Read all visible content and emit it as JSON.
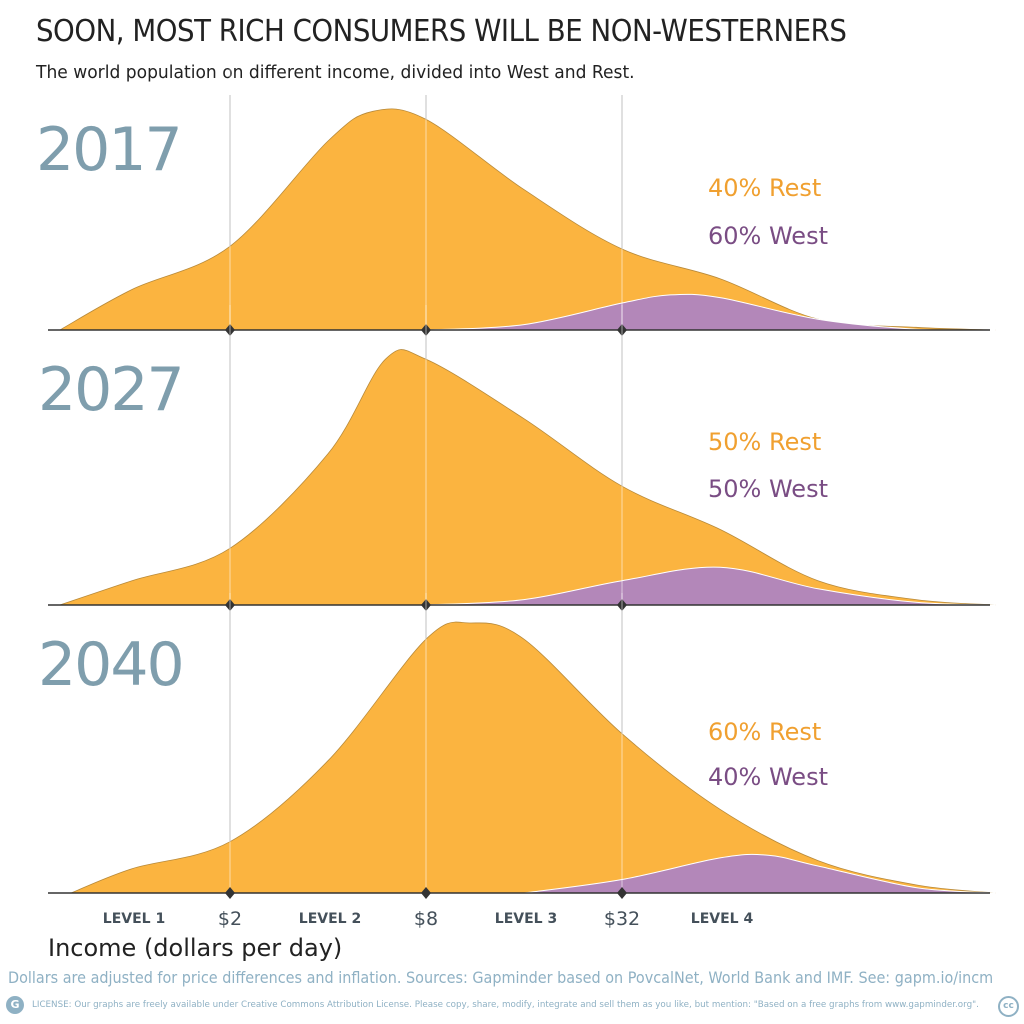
{
  "title": "SOON, MOST RICH CONSUMERS WILL BE NON-WESTERNERS",
  "subtitle": "The world population on different income, divided into West and Rest.",
  "footer": {
    "sources": "Dollars are adjusted for price differences and inflation. Sources: Gapminder based on PovcalNet, World Bank and IMF. See: gapm.io/incm",
    "license": "LICENSE: Our graphs are freely available under Creative Commons Attribution License. Please copy, share, modify, integrate and sell them as you like, but mention: \"Based on a free graphs from www.gapminder.org\".",
    "gapminder_logo": "G",
    "cc_logo": "cc"
  },
  "colors": {
    "rest": "#fbb440",
    "rest_label": "#f0a030",
    "west": "#b387b9",
    "west_label": "#7a4d84",
    "year": "#7f9ead"
  },
  "chart_data": {
    "type": "area",
    "xscale": "log",
    "xlabel": "Income (dollars per day)",
    "xlim": [
      0.6,
      450
    ],
    "x_ticks": [
      {
        "value": 2,
        "label": "$2"
      },
      {
        "value": 8,
        "label": "$8"
      },
      {
        "value": 32,
        "label": "$32"
      }
    ],
    "level_labels": [
      {
        "label": "LEVEL 1",
        "center": 1
      },
      {
        "label": "LEVEL 2",
        "center": 4
      },
      {
        "label": "LEVEL 3",
        "center": 16
      },
      {
        "label": "LEVEL 4",
        "center": 64
      }
    ],
    "y_units": "relative population (no axis shown)",
    "panels": [
      {
        "year": "2017",
        "rest_label": "40% Rest",
        "west_label": "60% West",
        "total": {
          "x": [
            0.6,
            1,
            2,
            4,
            5.5,
            8,
            16,
            32,
            64,
            128,
            256,
            450
          ],
          "y": [
            0,
            15,
            31,
            70,
            81,
            78,
            52,
            30,
            19,
            4,
            1,
            0
          ]
        },
        "west": {
          "x": [
            8,
            16,
            32,
            45,
            64,
            128,
            256,
            450
          ],
          "y": [
            0,
            2,
            10,
            13,
            12,
            4,
            0.3,
            0
          ]
        }
      },
      {
        "year": "2027",
        "rest_label": "50% Rest",
        "west_label": "50% West",
        "total": {
          "x": [
            0.6,
            1,
            2,
            4,
            6,
            8,
            16,
            32,
            64,
            128,
            256,
            450
          ],
          "y": [
            0,
            9,
            21,
            56,
            91,
            91,
            69,
            44,
            28,
            9,
            2,
            0
          ]
        },
        "west": {
          "x": [
            8,
            16,
            32,
            64,
            128,
            256,
            450
          ],
          "y": [
            0,
            2,
            9,
            14,
            6,
            1,
            0
          ]
        }
      },
      {
        "year": "2040",
        "rest_label": "60% Rest",
        "west_label": "40% West",
        "total": {
          "x": [
            0.65,
            1,
            2,
            4,
            8,
            11,
            16,
            32,
            64,
            128,
            256,
            450
          ],
          "y": [
            0,
            9,
            19,
            49,
            94,
            100,
            94,
            59,
            31,
            12,
            3,
            0
          ]
        },
        "west": {
          "x": [
            16,
            32,
            64,
            90,
            128,
            256,
            450
          ],
          "y": [
            0,
            5,
            13,
            14,
            10,
            2,
            0
          ]
        }
      }
    ]
  }
}
